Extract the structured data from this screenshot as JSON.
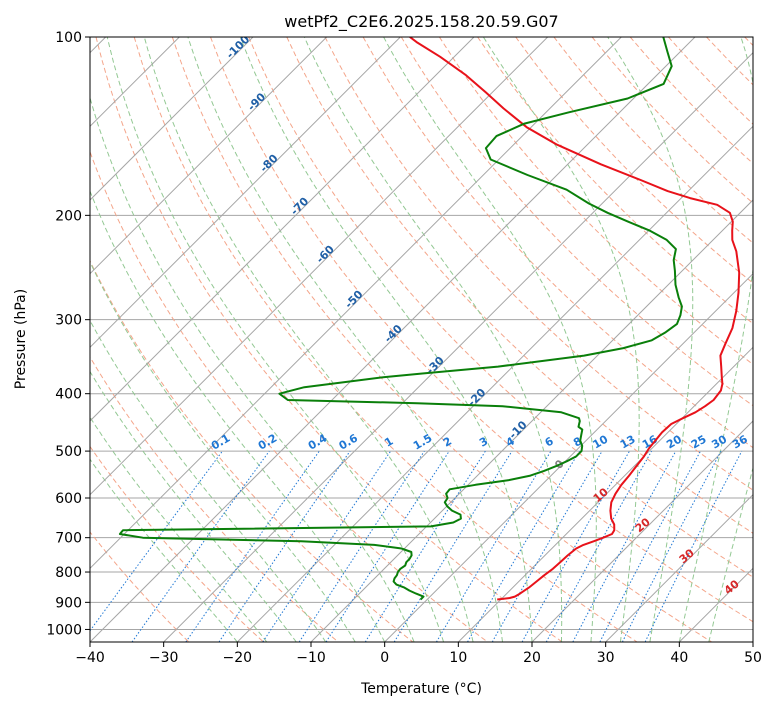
{
  "chart_data": {
    "type": "skew-t",
    "title": "wetPf2_C2E6.2025.158.20.59.G07",
    "xlabel": "Temperature (°C)",
    "ylabel": "Pressure (hPa)",
    "xlim": [
      -40,
      50
    ],
    "ylim": [
      1050,
      100
    ],
    "y_scale": "log",
    "x_ticks": [
      -40,
      -30,
      -20,
      -10,
      0,
      10,
      20,
      30,
      40,
      50
    ],
    "y_ticks": [
      100,
      200,
      300,
      400,
      500,
      600,
      700,
      800,
      900,
      1000
    ],
    "grid": true,
    "colors": {
      "temperature": "#e8121a",
      "dewpoint": "#0a7f0a",
      "isotherm_grid": "#a6a6a6",
      "dry_adiabat": "#f4a58a",
      "moist_adiabat": "#93c893",
      "mixing_ratio": "#1f77d4",
      "isotherm_label": "#1f5fa6",
      "dry_adiabat_label": "#d62728",
      "special_isotherm": "#808080"
    },
    "series": [
      {
        "points": [
          [
            890,
            9.5
          ],
          [
            885,
            11
          ],
          [
            880,
            11.5
          ],
          [
            870,
            11.8
          ],
          [
            860,
            12
          ],
          [
            850,
            12.2
          ],
          [
            830,
            12.4
          ],
          [
            810,
            12.6
          ],
          [
            790,
            12.9
          ],
          [
            770,
            13.0
          ],
          [
            750,
            13.1
          ],
          [
            730,
            13.3
          ],
          [
            720,
            13.8
          ],
          [
            710,
            14.7
          ],
          [
            700,
            15.5
          ],
          [
            690,
            16.2
          ],
          [
            680,
            16.0
          ],
          [
            665,
            15.2
          ],
          [
            650,
            14.0
          ],
          [
            630,
            12.8
          ],
          [
            610,
            11.8
          ],
          [
            590,
            11.2
          ],
          [
            570,
            10.8
          ],
          [
            550,
            10.6
          ],
          [
            530,
            10.3
          ],
          [
            510,
            10.0
          ],
          [
            495,
            9.6
          ],
          [
            480,
            9.4
          ],
          [
            465,
            9.2
          ],
          [
            450,
            9.3
          ],
          [
            440,
            10.1
          ],
          [
            430,
            11.0
          ],
          [
            420,
            11.5
          ],
          [
            410,
            11.8
          ],
          [
            395,
            11.5
          ],
          [
            385,
            10.8
          ],
          [
            375,
            9.8
          ],
          [
            360,
            8.3
          ],
          [
            345,
            6.7
          ],
          [
            330,
            5.8
          ],
          [
            310,
            4.6
          ],
          [
            290,
            2.8
          ],
          [
            270,
            0.6
          ],
          [
            250,
            -2.0
          ],
          [
            230,
            -5.3
          ],
          [
            220,
            -7.4
          ],
          [
            212,
            -8.7
          ],
          [
            205,
            -9.8
          ],
          [
            198,
            -11.4
          ],
          [
            192,
            -14.2
          ],
          [
            187,
            -18.8
          ],
          [
            182,
            -22.8
          ],
          [
            174,
            -28.2
          ],
          [
            164,
            -35.5
          ],
          [
            152,
            -44.1
          ],
          [
            142,
            -50.6
          ],
          [
            132,
            -56.3
          ],
          [
            124,
            -60.9
          ],
          [
            116,
            -65.9
          ],
          [
            108,
            -71.9
          ],
          [
            102,
            -77.1
          ],
          [
            100,
            -78.7
          ]
        ]
      },
      {
        "points": [
          [
            890,
            -0.9
          ],
          [
            880,
            -0.9
          ],
          [
            870,
            -2.3
          ],
          [
            860,
            -3.6
          ],
          [
            850,
            -4.7
          ],
          [
            840,
            -6.2
          ],
          [
            830,
            -7.0
          ],
          [
            820,
            -7.3
          ],
          [
            810,
            -7.4
          ],
          [
            800,
            -7.7
          ],
          [
            790,
            -7.8
          ],
          [
            780,
            -7.6
          ],
          [
            770,
            -7.9
          ],
          [
            760,
            -7.9
          ],
          [
            750,
            -8.1
          ],
          [
            740,
            -8.6
          ],
          [
            730,
            -10.4
          ],
          [
            720,
            -14.6
          ],
          [
            710,
            -25.0
          ],
          [
            700,
            -47.0
          ],
          [
            690,
            -50.6
          ],
          [
            680,
            -50.7
          ],
          [
            670,
            -9.4
          ],
          [
            660,
            -6.9
          ],
          [
            650,
            -6.4
          ],
          [
            640,
            -7.0
          ],
          [
            630,
            -8.7
          ],
          [
            620,
            -9.9
          ],
          [
            610,
            -10.8
          ],
          [
            600,
            -11.0
          ],
          [
            590,
            -11.8
          ],
          [
            580,
            -11.9
          ],
          [
            570,
            -9.0
          ],
          [
            560,
            -5.2
          ],
          [
            550,
            -2.8
          ],
          [
            540,
            -1.6
          ],
          [
            530,
            -0.6
          ],
          [
            520,
            0.2
          ],
          [
            510,
            0.8
          ],
          [
            500,
            0.8
          ],
          [
            490,
            0.2
          ],
          [
            480,
            -0.8
          ],
          [
            470,
            -1.4
          ],
          [
            460,
            -2.0
          ],
          [
            455,
            -2.9
          ],
          [
            450,
            -3.2
          ],
          [
            445,
            -3.5
          ],
          [
            440,
            -4.0
          ],
          [
            430,
            -7.2
          ],
          [
            420,
            -16.0
          ],
          [
            415,
            -28.0
          ],
          [
            410,
            -46.0
          ],
          [
            400,
            -48.0
          ],
          [
            390,
            -45.5
          ],
          [
            375,
            -36.0
          ],
          [
            370,
            -31.5
          ],
          [
            360,
            -22.0
          ],
          [
            345,
            -11.8
          ],
          [
            335,
            -7.5
          ],
          [
            325,
            -4.7
          ],
          [
            315,
            -3.9
          ],
          [
            305,
            -3.5
          ],
          [
            295,
            -4.2
          ],
          [
            285,
            -5.2
          ],
          [
            275,
            -6.9
          ],
          [
            262,
            -9.0
          ],
          [
            248,
            -11.0
          ],
          [
            238,
            -12.6
          ],
          [
            228,
            -13.8
          ],
          [
            220,
            -16.3
          ],
          [
            212,
            -20.0
          ],
          [
            205,
            -24.0
          ],
          [
            198,
            -28.0
          ],
          [
            191,
            -31.8
          ],
          [
            181,
            -36.7
          ],
          [
            171,
            -44.0
          ],
          [
            161,
            -51.1
          ],
          [
            154,
            -53.3
          ],
          [
            147,
            -53.5
          ],
          [
            140,
            -51.4
          ],
          [
            134,
            -46.9
          ],
          [
            127,
            -40.8
          ],
          [
            120,
            -37.9
          ],
          [
            112,
            -39.2
          ],
          [
            106,
            -41.7
          ],
          [
            100,
            -44.3
          ]
        ]
      }
    ],
    "isotherm_labels": [
      {
        "t": -100,
        "text": "-100"
      },
      {
        "t": -90,
        "text": "-90"
      },
      {
        "t": -80,
        "text": "-80"
      },
      {
        "t": -70,
        "text": "-70"
      },
      {
        "t": -60,
        "text": "-60"
      },
      {
        "t": -50,
        "text": "-50"
      },
      {
        "t": -40,
        "text": "-40"
      },
      {
        "t": -30,
        "text": "-30"
      },
      {
        "t": -20,
        "text": "-20"
      },
      {
        "t": -10,
        "text": "-10"
      }
    ],
    "mixing_ratio_labels": [
      "0.1",
      "0.2",
      "0.4",
      "0.6",
      "1",
      "1.5",
      "2",
      "3",
      "4",
      "6",
      "8",
      "10",
      "13",
      "16",
      "20",
      "25",
      "30",
      "36"
    ],
    "special_isotherm_label": "0",
    "dry_adiabat_labels": [
      "10",
      "20",
      "30",
      "40"
    ]
  }
}
